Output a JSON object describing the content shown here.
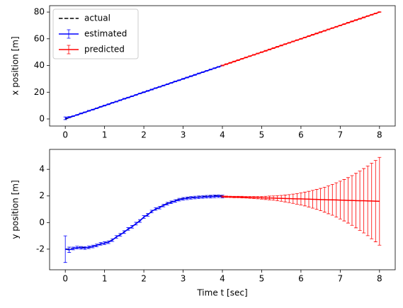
{
  "chart_data": [
    {
      "type": "line",
      "ylabel": "x position [m]",
      "legend": "upper left",
      "xlim": [
        -0.4,
        8.4
      ],
      "ylim": [
        -5.3,
        84.8
      ],
      "xticks": [
        0,
        1,
        2,
        3,
        4,
        5,
        6,
        7,
        8
      ],
      "yticks": [
        0,
        20,
        40,
        60,
        80
      ],
      "series": [
        {
          "name": "actual",
          "color": "#000000",
          "style": "dashed",
          "x": [
            0,
            0.1,
            0.2,
            0.3,
            0.4,
            0.5,
            0.6,
            0.7,
            0.8,
            0.9,
            1,
            1.1,
            1.2,
            1.3,
            1.4,
            1.5,
            1.6,
            1.7,
            1.8,
            1.9,
            2,
            2.1,
            2.2,
            2.3,
            2.4,
            2.5,
            2.6,
            2.7,
            2.8,
            2.9,
            3,
            3.1,
            3.2,
            3.3,
            3.4,
            3.5,
            3.6,
            3.7,
            3.8,
            3.9,
            4
          ],
          "values": [
            0,
            1,
            2,
            3,
            4,
            5,
            6,
            7,
            8,
            9,
            10,
            11,
            12,
            13,
            14,
            15,
            16,
            17,
            18,
            19,
            20,
            21,
            22,
            23,
            24,
            25,
            26,
            27,
            28,
            29,
            30,
            31,
            32,
            33,
            34,
            35,
            36,
            37,
            38,
            39,
            40
          ]
        },
        {
          "name": "estimated",
          "color": "#0000ff",
          "style": "solid",
          "x": [
            0,
            0.1,
            0.2,
            0.3,
            0.4,
            0.5,
            0.6,
            0.7,
            0.8,
            0.9,
            1,
            1.1,
            1.2,
            1.3,
            1.4,
            1.5,
            1.6,
            1.7,
            1.8,
            1.9,
            2,
            2.1,
            2.2,
            2.3,
            2.4,
            2.5,
            2.6,
            2.7,
            2.8,
            2.9,
            3,
            3.1,
            3.2,
            3.3,
            3.4,
            3.5,
            3.6,
            3.7,
            3.8,
            3.9,
            4
          ],
          "values": [
            0.5,
            1.3,
            2.1,
            3.0,
            4.1,
            5.0,
            6.1,
            7.0,
            8.0,
            9.1,
            10.0,
            11.0,
            12.1,
            13.0,
            14.0,
            15.1,
            16.0,
            17.0,
            18.0,
            19.1,
            20.0,
            21.0,
            22.0,
            23.1,
            24.0,
            25.0,
            26.0,
            27.0,
            28.1,
            29.0,
            30.0,
            31.0,
            32.0,
            33.0,
            34.1,
            35.0,
            36.0,
            37.0,
            38.0,
            39.0,
            40.0
          ],
          "errors": [
            1.0,
            0.5,
            0.3,
            0.3,
            0.3,
            0.3,
            0.3,
            0.3,
            0.3,
            0.3,
            0.3,
            0.3,
            0.3,
            0.3,
            0.3,
            0.3,
            0.3,
            0.3,
            0.3,
            0.3,
            0.3,
            0.3,
            0.3,
            0.3,
            0.3,
            0.3,
            0.3,
            0.3,
            0.3,
            0.3,
            0.3,
            0.3,
            0.3,
            0.3,
            0.3,
            0.3,
            0.3,
            0.3,
            0.3,
            0.3,
            0.3
          ]
        },
        {
          "name": "predicted",
          "color": "#ff0000",
          "style": "solid",
          "x": [
            4,
            4.1,
            4.2,
            4.3,
            4.4,
            4.5,
            4.6,
            4.7,
            4.8,
            4.9,
            5,
            5.1,
            5.2,
            5.3,
            5.4,
            5.5,
            5.6,
            5.7,
            5.8,
            5.9,
            6,
            6.1,
            6.2,
            6.3,
            6.4,
            6.5,
            6.6,
            6.7,
            6.8,
            6.9,
            7,
            7.1,
            7.2,
            7.3,
            7.4,
            7.5,
            7.6,
            7.7,
            7.8,
            7.9,
            8
          ],
          "values": [
            40,
            41,
            42,
            43,
            44,
            45,
            46,
            47,
            48,
            49,
            50,
            51,
            52,
            53,
            54,
            55,
            56,
            57,
            58,
            59,
            60,
            61,
            62,
            63,
            64,
            65,
            66,
            67,
            68,
            69,
            70,
            71,
            72,
            73,
            74,
            75,
            76,
            77,
            78,
            79,
            80
          ],
          "errors": [
            0.3,
            0.3,
            0.3,
            0.3,
            0.3,
            0.3,
            0.3,
            0.3,
            0.3,
            0.3,
            0.3,
            0.3,
            0.3,
            0.3,
            0.3,
            0.3,
            0.3,
            0.3,
            0.3,
            0.3,
            0.3,
            0.3,
            0.3,
            0.3,
            0.3,
            0.3,
            0.3,
            0.3,
            0.3,
            0.3,
            0.3,
            0.3,
            0.3,
            0.3,
            0.3,
            0.3,
            0.3,
            0.3,
            0.3,
            0.3,
            0.3
          ]
        }
      ]
    },
    {
      "type": "line",
      "ylabel": "y position [m]",
      "xlabel": "Time t [sec]",
      "xlim": [
        -0.4,
        8.4
      ],
      "ylim": [
        -3.55,
        5.5
      ],
      "xticks": [
        0,
        1,
        2,
        3,
        4,
        5,
        6,
        7,
        8
      ],
      "yticks": [
        -2,
        0,
        2,
        4
      ],
      "series": [
        {
          "name": "actual",
          "color": "#000000",
          "style": "dashed",
          "x": [
            0,
            0.1,
            0.2,
            0.3,
            0.4,
            0.5,
            0.6,
            0.7,
            0.8,
            0.9,
            1,
            1.1,
            1.2,
            1.3,
            1.4,
            1.5,
            1.6,
            1.7,
            1.8,
            1.9,
            2,
            2.1,
            2.2,
            2.3,
            2.4,
            2.5,
            2.6,
            2.7,
            2.8,
            2.9,
            3,
            3.1,
            3.2,
            3.3,
            3.4,
            3.5,
            3.6,
            3.7,
            3.8,
            3.9,
            4
          ],
          "values": [
            -2.0,
            -2.0,
            -1.95,
            -1.9,
            -1.85,
            -1.9,
            -1.88,
            -1.8,
            -1.7,
            -1.62,
            -1.55,
            -1.45,
            -1.3,
            -1.1,
            -0.9,
            -0.7,
            -0.5,
            -0.3,
            -0.1,
            0.15,
            0.4,
            0.6,
            0.85,
            1.0,
            1.15,
            1.3,
            1.45,
            1.55,
            1.65,
            1.75,
            1.8,
            1.85,
            1.88,
            1.9,
            1.92,
            1.95,
            1.97,
            1.98,
            2.0,
            2.02,
            2.0
          ]
        },
        {
          "name": "estimated",
          "color": "#0000ff",
          "style": "solid",
          "x": [
            0,
            0.1,
            0.2,
            0.3,
            0.4,
            0.5,
            0.6,
            0.7,
            0.8,
            0.9,
            1,
            1.1,
            1.2,
            1.3,
            1.4,
            1.5,
            1.6,
            1.7,
            1.8,
            1.9,
            2,
            2.1,
            2.2,
            2.3,
            2.4,
            2.5,
            2.6,
            2.7,
            2.8,
            2.9,
            3,
            3.1,
            3.2,
            3.3,
            3.4,
            3.5,
            3.6,
            3.7,
            3.8,
            3.9,
            4
          ],
          "values": [
            -2.0,
            -2.05,
            -1.95,
            -1.88,
            -1.9,
            -1.92,
            -1.86,
            -1.8,
            -1.72,
            -1.6,
            -1.55,
            -1.48,
            -1.32,
            -1.08,
            -0.92,
            -0.72,
            -0.48,
            -0.32,
            -0.08,
            0.12,
            0.42,
            0.58,
            0.83,
            1.02,
            1.12,
            1.28,
            1.42,
            1.52,
            1.62,
            1.72,
            1.78,
            1.82,
            1.86,
            1.88,
            1.9,
            1.92,
            1.94,
            1.95,
            1.97,
            1.98,
            1.96
          ],
          "errors": [
            1.0,
            0.2,
            0.1,
            0.1,
            0.1,
            0.1,
            0.1,
            0.1,
            0.1,
            0.1,
            0.1,
            0.1,
            0.1,
            0.1,
            0.1,
            0.1,
            0.1,
            0.1,
            0.1,
            0.1,
            0.1,
            0.1,
            0.1,
            0.1,
            0.1,
            0.1,
            0.1,
            0.1,
            0.1,
            0.1,
            0.1,
            0.1,
            0.1,
            0.1,
            0.1,
            0.1,
            0.1,
            0.1,
            0.1,
            0.1,
            0.1
          ]
        },
        {
          "name": "predicted",
          "color": "#ff0000",
          "style": "solid",
          "x": [
            4,
            4.1,
            4.2,
            4.3,
            4.4,
            4.5,
            4.6,
            4.7,
            4.8,
            4.9,
            5,
            5.1,
            5.2,
            5.3,
            5.4,
            5.5,
            5.6,
            5.7,
            5.8,
            5.9,
            6,
            6.1,
            6.2,
            6.3,
            6.4,
            6.5,
            6.6,
            6.7,
            6.8,
            6.9,
            7,
            7.1,
            7.2,
            7.3,
            7.4,
            7.5,
            7.6,
            7.7,
            7.8,
            7.9,
            8
          ],
          "values": [
            1.95,
            1.94,
            1.93,
            1.92,
            1.92,
            1.91,
            1.9,
            1.89,
            1.88,
            1.87,
            1.86,
            1.85,
            1.85,
            1.84,
            1.83,
            1.82,
            1.81,
            1.8,
            1.79,
            1.78,
            1.78,
            1.77,
            1.76,
            1.75,
            1.74,
            1.73,
            1.72,
            1.71,
            1.71,
            1.7,
            1.69,
            1.68,
            1.67,
            1.66,
            1.65,
            1.64,
            1.64,
            1.63,
            1.62,
            1.61,
            1.6
          ],
          "errors": [
            0.05,
            0.05,
            0.05,
            0.05,
            0.05,
            0.06,
            0.06,
            0.07,
            0.08,
            0.09,
            0.1,
            0.12,
            0.14,
            0.16,
            0.19,
            0.22,
            0.26,
            0.3,
            0.35,
            0.4,
            0.46,
            0.52,
            0.59,
            0.67,
            0.75,
            0.84,
            0.94,
            1.05,
            1.16,
            1.29,
            1.42,
            1.56,
            1.71,
            1.87,
            2.05,
            2.23,
            2.42,
            2.62,
            2.84,
            3.06,
            3.3
          ]
        }
      ]
    }
  ]
}
